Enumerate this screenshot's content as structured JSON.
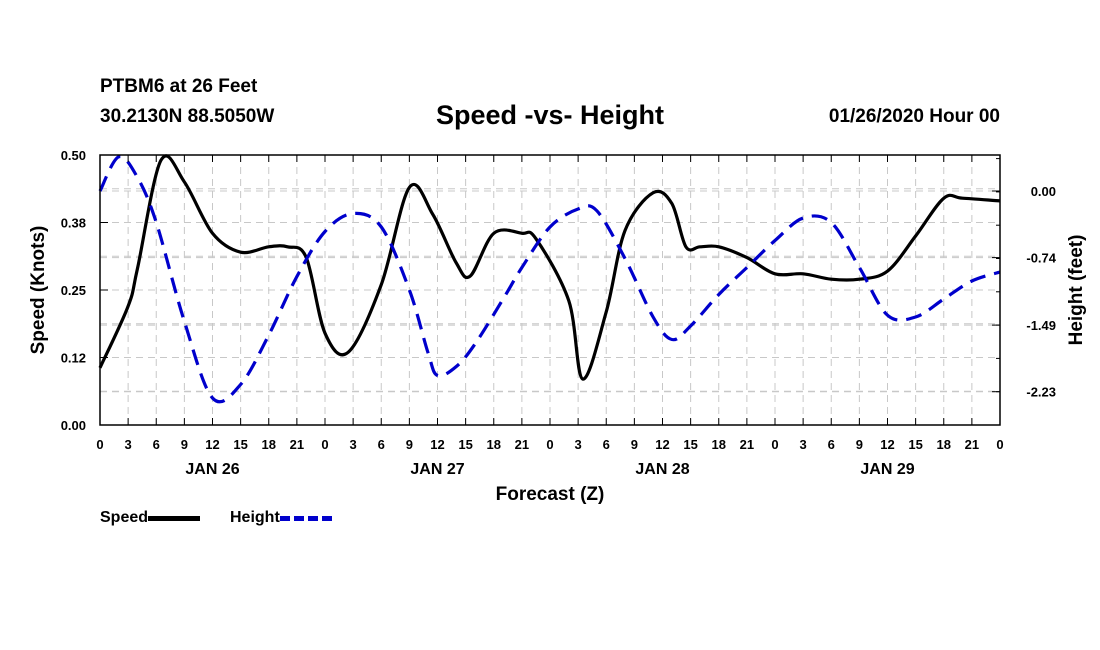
{
  "header": {
    "station": "PTBM6 at 26 Feet",
    "coords": "30.2130N 88.5050W",
    "title": "Speed -vs- Height",
    "datetime": "01/26/2020 Hour 00"
  },
  "colors": {
    "speed": "#000000",
    "height": "#0000cc",
    "grid": "#c8c8c8"
  },
  "chart_data": {
    "type": "line",
    "xlabel": "Forecast (Z)",
    "ylabel_left": "Speed (Knots)",
    "ylabel_right": "Height (feet)",
    "x_hour_range": [
      0,
      96
    ],
    "x_tick_labels": [
      "0",
      "3",
      "6",
      "9",
      "12",
      "15",
      "18",
      "21",
      "0",
      "3",
      "6",
      "9",
      "12",
      "15",
      "18",
      "21",
      "0",
      "3",
      "6",
      "9",
      "12",
      "15",
      "18",
      "21",
      "0",
      "3",
      "6",
      "9",
      "12",
      "15",
      "18",
      "21",
      "0"
    ],
    "day_labels": [
      {
        "label": "JAN 26",
        "hour": 12
      },
      {
        "label": "JAN 27",
        "hour": 36
      },
      {
        "label": "JAN 28",
        "hour": 60
      },
      {
        "label": "JAN 29",
        "hour": 84
      }
    ],
    "y_left": {
      "range": [
        0,
        0.5
      ],
      "tick_values": [
        0,
        0.125,
        0.25,
        0.375,
        0.5
      ],
      "tick_labels": [
        "0.00",
        "0.12",
        "0.25",
        "0.38",
        "0.50"
      ]
    },
    "y_right": {
      "range": [
        -2.6,
        0.4
      ],
      "tick_values": [
        0,
        -0.74,
        -1.49,
        -2.23
      ],
      "tick_labels": [
        "0.00",
        "-0.74",
        "-1.49",
        "-2.23"
      ]
    },
    "grid": true,
    "legend_position": "bottom-left",
    "series": [
      {
        "name": "Speed",
        "axis": "left",
        "style": "solid",
        "hours": [
          0,
          3,
          4,
          6.5,
          9,
          12,
          15,
          18,
          20,
          22,
          24,
          26.5,
          30,
          33,
          35.5,
          38,
          39.5,
          42,
          45,
          46.5,
          50,
          51.5,
          54,
          56,
          59,
          61,
          62.5,
          64,
          66,
          69,
          72,
          75,
          78,
          81,
          84,
          87,
          90,
          92,
          96
        ],
        "values": [
          0.106,
          0.22,
          0.29,
          0.49,
          0.45,
          0.355,
          0.32,
          0.33,
          0.33,
          0.31,
          0.17,
          0.135,
          0.26,
          0.44,
          0.39,
          0.3,
          0.276,
          0.355,
          0.355,
          0.345,
          0.23,
          0.085,
          0.21,
          0.36,
          0.43,
          0.41,
          0.33,
          0.33,
          0.33,
          0.31,
          0.28,
          0.28,
          0.27,
          0.27,
          0.285,
          0.35,
          0.42,
          0.42,
          0.415
        ]
      },
      {
        "name": "Height",
        "axis": "right",
        "style": "dashed",
        "hours": [
          0,
          2,
          4,
          6,
          9,
          12,
          15,
          18,
          21,
          24,
          27,
          30,
          33,
          35,
          36,
          38,
          40,
          43,
          45,
          48,
          51,
          53,
          56,
          59,
          61,
          63,
          66,
          69,
          72,
          75,
          78,
          81,
          84,
          87,
          90,
          93,
          96
        ],
        "values": [
          0.0,
          0.38,
          0.15,
          -0.35,
          -1.45,
          -2.3,
          -2.15,
          -1.6,
          -0.95,
          -0.45,
          -0.25,
          -0.4,
          -1.1,
          -1.8,
          -2.05,
          -1.95,
          -1.7,
          -1.2,
          -0.85,
          -0.4,
          -0.2,
          -0.22,
          -0.75,
          -1.4,
          -1.65,
          -1.5,
          -1.15,
          -0.85,
          -0.55,
          -0.3,
          -0.35,
          -0.85,
          -1.38,
          -1.4,
          -1.2,
          -1.0,
          -0.9
        ]
      }
    ]
  },
  "legend": {
    "speed_label": "Speed",
    "height_label": "Height"
  }
}
